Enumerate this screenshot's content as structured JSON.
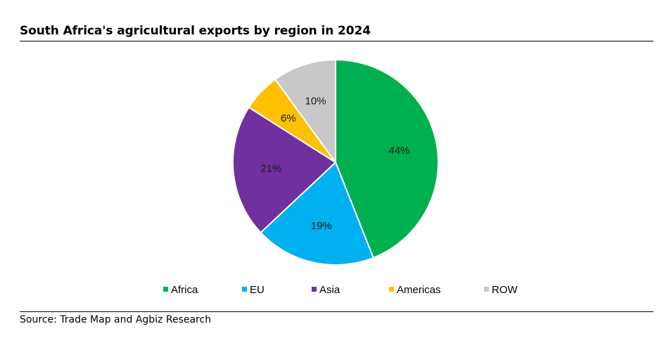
{
  "title": "South Africa's agricultural exports by region in 2024",
  "source": "Source: Trade Map and Agbiz Research",
  "chart_data": {
    "type": "pie",
    "title": "South Africa's agricultural exports by region in 2024",
    "categories": [
      "Africa",
      "EU",
      "Asia",
      "Americas",
      "ROW"
    ],
    "values": [
      44,
      19,
      21,
      6,
      10
    ],
    "labels": [
      "44%",
      "19%",
      "21%",
      "6%",
      "10%"
    ],
    "colors": [
      "#00b050",
      "#00b0f0",
      "#7030a0",
      "#ffc000",
      "#c8c8c8"
    ],
    "legend_position": "bottom",
    "start_angle": "12 o'clock",
    "direction": "clockwise"
  }
}
